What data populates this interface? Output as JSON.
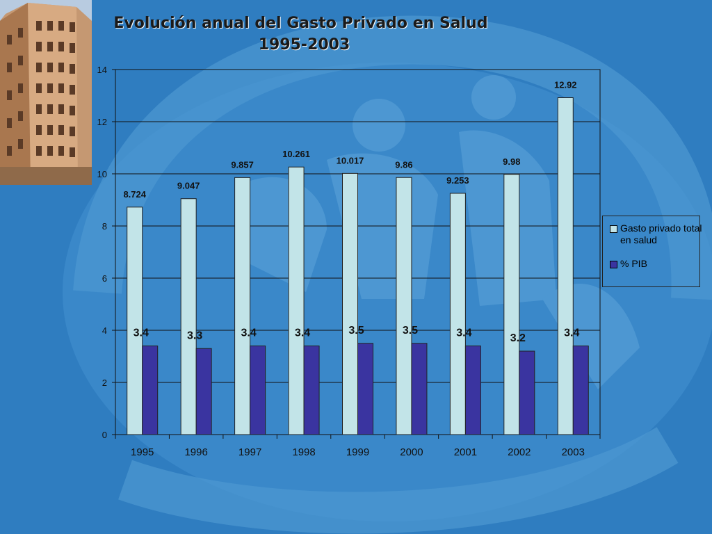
{
  "title": {
    "line1": "Evolución anual del Gasto Privado en Salud",
    "line2": "1995-2003"
  },
  "colors": {
    "background": "#2f7dc0",
    "gasto_bar": "#c2e4e8",
    "pib_bar": "#3a34a0",
    "gridline": "#111111"
  },
  "chart_data": {
    "type": "bar",
    "title": "Evolución anual del Gasto Privado en Salud 1995-2003",
    "categories": [
      "1995",
      "1996",
      "1997",
      "1998",
      "1999",
      "2000",
      "2001",
      "2002",
      "2003"
    ],
    "series": [
      {
        "name": "Gasto privado total en salud",
        "values": [
          8.724,
          9.047,
          9.857,
          10.261,
          10.017,
          9.86,
          9.253,
          9.98,
          12.92
        ],
        "labels": [
          "8.724",
          "9.047",
          "9.857",
          "10.261",
          "10.017",
          "9.86",
          "9.253",
          "9.98",
          "12.92"
        ]
      },
      {
        "name": "% PIB",
        "values": [
          3.4,
          3.3,
          3.4,
          3.4,
          3.5,
          3.5,
          3.4,
          3.2,
          3.4
        ],
        "labels": [
          "3.4",
          "3.3",
          "3.4",
          "3.4",
          "3.5",
          "3.5",
          "3.4",
          "3.2",
          "3.4"
        ]
      }
    ],
    "ylim": [
      0,
      14
    ],
    "yticks": [
      "0",
      "2",
      "4",
      "6",
      "8",
      "10",
      "12",
      "14"
    ],
    "xlabel": "",
    "ylabel": "",
    "grid": true,
    "legend_position": "right"
  },
  "legend": {
    "item1": "Gasto privado total en salud",
    "item2": "% PIB"
  }
}
